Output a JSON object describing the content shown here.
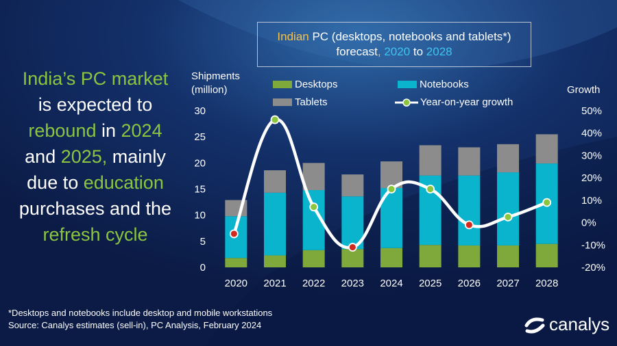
{
  "headline": {
    "p1": "India’s PC market",
    "p2": "is expected to",
    "p3": "rebound",
    "p4": " in ",
    "p5": "2024",
    "p6": "and ",
    "p7": "2025,",
    "p8": " mainly",
    "p9": "due to ",
    "p10": "education",
    "p11": "purchases and the",
    "p12": "refresh cycle"
  },
  "title": {
    "t1": "Indian",
    "t2": " PC (desktops, notebooks and tablets*)",
    "t3": "forecast",
    "t4": ", ",
    "t5": "2020",
    "t6": " to ",
    "t7": "2028"
  },
  "legend": {
    "desktops": "Desktops",
    "notebooks": "Notebooks",
    "tablets": "Tablets",
    "growth": "Year-on-year growth"
  },
  "footnote": {
    "line1": "*Desktops and notebooks  include desktop and mobile workstations",
    "line2": "Source:  Canalys estimates (sell-in), PC Analysis, February 2024"
  },
  "logo": {
    "text": "canalys"
  },
  "colors": {
    "desktops": "#7fa93a",
    "notebooks": "#0ab4cc",
    "tablets": "#8c8c8c",
    "growth_line": "#ffffff",
    "growth_marker": "#8cc63f",
    "negative_marker": "#d12a1f",
    "highlight_text": "#8cc63f"
  },
  "chart_data": {
    "type": "bar",
    "stacked": true,
    "categories": [
      "2020",
      "2021",
      "2022",
      "2023",
      "2024",
      "2025",
      "2026",
      "2027",
      "2028"
    ],
    "series": [
      {
        "name": "Desktops",
        "values": [
          1.8,
          2.3,
          3.3,
          3.5,
          3.7,
          4.3,
          4.2,
          4.2,
          4.5
        ]
      },
      {
        "name": "Notebooks",
        "values": [
          8.0,
          12.0,
          11.5,
          10.1,
          11.5,
          13.3,
          13.4,
          14.0,
          15.4
        ]
      },
      {
        "name": "Tablets",
        "values": [
          3.1,
          4.3,
          5.2,
          4.2,
          5.1,
          5.8,
          5.4,
          5.4,
          5.6
        ]
      }
    ],
    "growth": {
      "name": "Year-on-year growth",
      "values": [
        -5,
        46,
        7,
        -11,
        15,
        15,
        -1,
        2.5,
        9
      ]
    },
    "ylabel": "Shipments (million)",
    "ylabel_lines": [
      "Shipments",
      "(million)"
    ],
    "y2label": "Growth",
    "ylim": [
      0,
      30
    ],
    "yticks": [
      "0",
      "5",
      "10",
      "15",
      "20",
      "25",
      "30"
    ],
    "y2lim": [
      -20,
      50
    ],
    "y2ticks": [
      "-20%",
      "-10%",
      "0%",
      "10%",
      "20%",
      "30%",
      "40%",
      "50%"
    ],
    "legend_position": "top",
    "grid": false
  }
}
